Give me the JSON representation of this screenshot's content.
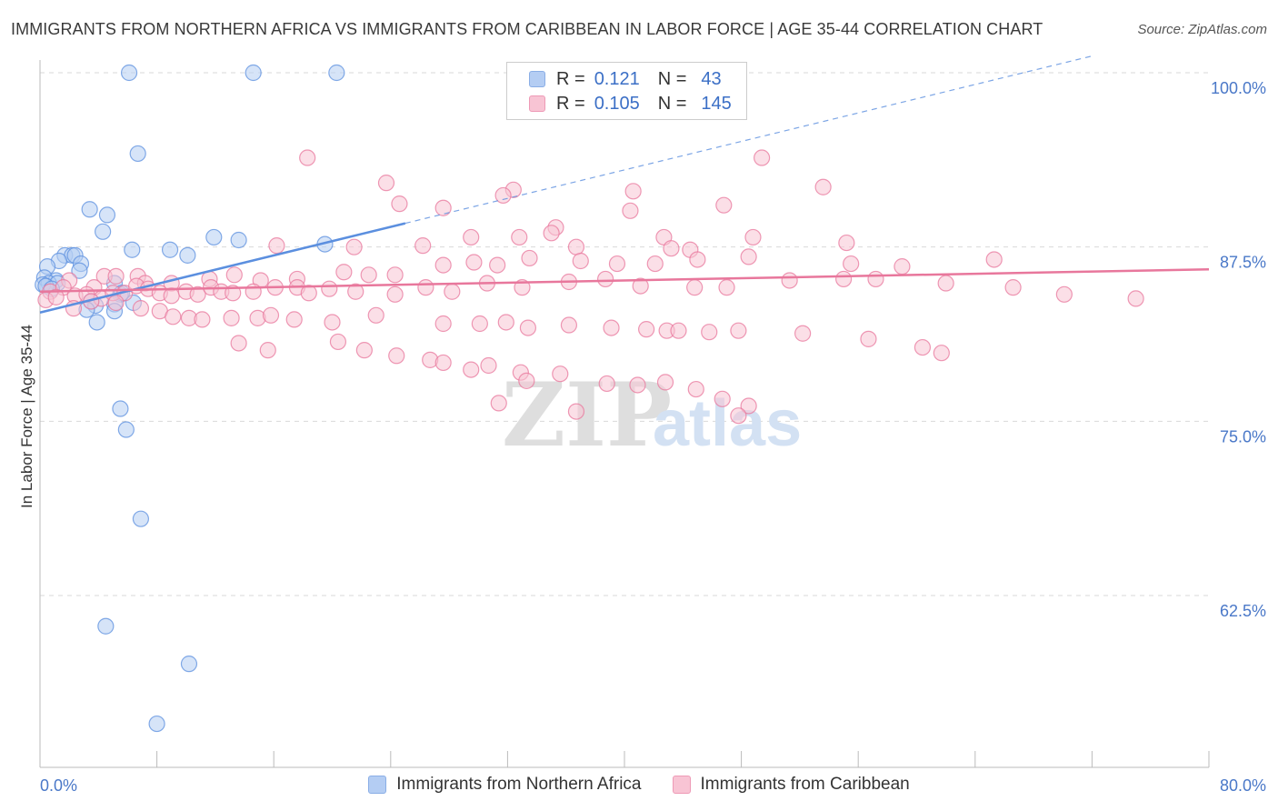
{
  "title": "IMMIGRANTS FROM NORTHERN AFRICA VS IMMIGRANTS FROM CARIBBEAN IN LABOR FORCE | AGE 35-44 CORRELATION CHART",
  "source": "Source: ZipAtlas.com",
  "watermark": {
    "zip": "ZIP",
    "atlas": "atlas"
  },
  "legend": {
    "r_label": "R =",
    "n_label": "N =",
    "rows": [
      {
        "r": "0.121",
        "n": "43",
        "swatch": "#b4cdf3",
        "border": "#8aaee6"
      },
      {
        "r": "0.105",
        "n": "145",
        "swatch": "#f8c4d4",
        "border": "#ee9ab6"
      }
    ]
  },
  "chart_data": {
    "type": "scatter",
    "title": "IMMIGRANTS FROM NORTHERN AFRICA VS IMMIGRANTS FROM CARIBBEAN IN LABOR FORCE | AGE 35-44 CORRELATION CHART",
    "xlabel": "",
    "ylabel": "In Labor Force | Age 35-44",
    "xlim": [
      0,
      80
    ],
    "ylim": [
      52,
      102
    ],
    "x_tick_labels": [
      {
        "value": 0,
        "label": "0.0%"
      },
      {
        "value": 80,
        "label": "80.0%"
      }
    ],
    "y_tick_labels": [
      {
        "value": 100,
        "label": "100.0%"
      },
      {
        "value": 87.5,
        "label": "87.5%"
      },
      {
        "value": 75,
        "label": "75.0%"
      },
      {
        "value": 62.5,
        "label": "62.5%"
      }
    ],
    "grid": "horizontal dashed",
    "legend_position": "top-center",
    "series": [
      {
        "name": "Immigrants from Northern Africa",
        "color": "#5b8fdf",
        "fill": "#b4cdf3",
        "r": 0.121,
        "n": 43,
        "trend": {
          "x0": 0,
          "y0": 82.8,
          "x1": 25,
          "y1": 89.2,
          "dashed_to_x": 72,
          "dashed_to_y": 101.2
        },
        "points": [
          [
            6.1,
            100
          ],
          [
            14.6,
            100
          ],
          [
            20.3,
            100
          ],
          [
            6.7,
            94.2
          ],
          [
            3.4,
            90.2
          ],
          [
            4.6,
            89.8
          ],
          [
            4.3,
            88.6
          ],
          [
            11.9,
            88.2
          ],
          [
            13.6,
            88
          ],
          [
            19.5,
            87.7
          ],
          [
            6.3,
            87.3
          ],
          [
            8.9,
            87.3
          ],
          [
            10.1,
            86.9
          ],
          [
            1.7,
            86.9
          ],
          [
            2.2,
            86.9
          ],
          [
            2.4,
            86.9
          ],
          [
            1.3,
            86.5
          ],
          [
            2.8,
            86.3
          ],
          [
            0.5,
            86.1
          ],
          [
            2.7,
            85.8
          ],
          [
            0.3,
            85.3
          ],
          [
            1.1,
            85.1
          ],
          [
            0.6,
            84.9
          ],
          [
            1.2,
            84.9
          ],
          [
            0.2,
            84.8
          ],
          [
            0.4,
            84.7
          ],
          [
            0.8,
            84.5
          ],
          [
            5.1,
            84.9
          ],
          [
            5.5,
            84.1
          ],
          [
            5.6,
            84.2
          ],
          [
            3.5,
            83.6
          ],
          [
            6.4,
            83.5
          ],
          [
            3.8,
            83.3
          ],
          [
            5.1,
            83.4
          ],
          [
            3.2,
            83
          ],
          [
            5.1,
            82.9
          ],
          [
            3.9,
            82.1
          ],
          [
            5.5,
            75.9
          ],
          [
            5.9,
            74.4
          ],
          [
            6.9,
            68
          ],
          [
            4.5,
            60.3
          ],
          [
            10.2,
            57.6
          ],
          [
            8.0,
            53.3
          ]
        ]
      },
      {
        "name": "Immigrants from Caribbean",
        "color": "#e8779c",
        "fill": "#f8c4d4",
        "r": 0.105,
        "n": 145,
        "trend": {
          "x0": 0,
          "y0": 84.3,
          "x1": 80,
          "y1": 85.9
        },
        "points": [
          [
            18.3,
            93.9
          ],
          [
            49.4,
            93.9
          ],
          [
            23.7,
            92.1
          ],
          [
            53.6,
            91.8
          ],
          [
            32.4,
            91.6
          ],
          [
            40.6,
            91.5
          ],
          [
            24.6,
            90.6
          ],
          [
            31.7,
            91.2
          ],
          [
            46.8,
            90.5
          ],
          [
            40.4,
            90.1
          ],
          [
            27.6,
            90.3
          ],
          [
            35.3,
            88.9
          ],
          [
            35.0,
            88.5
          ],
          [
            29.5,
            88.2
          ],
          [
            32.8,
            88.2
          ],
          [
            42.7,
            88.2
          ],
          [
            48.8,
            88.2
          ],
          [
            55.2,
            87.8
          ],
          [
            16.2,
            87.6
          ],
          [
            21.5,
            87.5
          ],
          [
            26.2,
            87.6
          ],
          [
            36.7,
            87.5
          ],
          [
            43.2,
            87.4
          ],
          [
            44.5,
            87.3
          ],
          [
            4.4,
            85.4
          ],
          [
            5.2,
            85.4
          ],
          [
            6.7,
            85.4
          ],
          [
            2.0,
            85.1
          ],
          [
            3.7,
            84.6
          ],
          [
            7.2,
            84.9
          ],
          [
            9.0,
            84.9
          ],
          [
            11.6,
            85.2
          ],
          [
            13.3,
            85.5
          ],
          [
            15.1,
            85.1
          ],
          [
            17.6,
            85.2
          ],
          [
            20.8,
            85.7
          ],
          [
            22.5,
            85.5
          ],
          [
            24.3,
            85.5
          ],
          [
            27.6,
            86.2
          ],
          [
            29.7,
            86.4
          ],
          [
            31.3,
            86.2
          ],
          [
            33.5,
            86.7
          ],
          [
            37.0,
            86.5
          ],
          [
            39.5,
            86.3
          ],
          [
            42.1,
            86.3
          ],
          [
            45.0,
            86.6
          ],
          [
            48.5,
            86.8
          ],
          [
            55.5,
            86.3
          ],
          [
            59.0,
            86.1
          ],
          [
            65.3,
            86.6
          ],
          [
            0.7,
            84.3
          ],
          [
            1.6,
            84.6
          ],
          [
            2.4,
            84.0
          ],
          [
            3.2,
            84.1
          ],
          [
            4.2,
            83.8
          ],
          [
            5.0,
            84.2
          ],
          [
            5.8,
            84.2
          ],
          [
            6.6,
            84.7
          ],
          [
            7.4,
            84.5
          ],
          [
            8.2,
            84.2
          ],
          [
            9.0,
            84.0
          ],
          [
            10.0,
            84.3
          ],
          [
            10.8,
            84.1
          ],
          [
            11.7,
            84.6
          ],
          [
            12.4,
            84.3
          ],
          [
            13.2,
            84.2
          ],
          [
            14.6,
            84.3
          ],
          [
            16.1,
            84.6
          ],
          [
            17.6,
            84.6
          ],
          [
            18.4,
            84.2
          ],
          [
            19.8,
            84.5
          ],
          [
            21.6,
            84.3
          ],
          [
            24.3,
            84.1
          ],
          [
            26.4,
            84.6
          ],
          [
            28.2,
            84.3
          ],
          [
            30.6,
            84.9
          ],
          [
            33.0,
            84.6
          ],
          [
            36.2,
            85.0
          ],
          [
            38.7,
            85.2
          ],
          [
            41.1,
            84.7
          ],
          [
            44.8,
            84.6
          ],
          [
            47.0,
            84.6
          ],
          [
            51.3,
            85.1
          ],
          [
            55.0,
            85.2
          ],
          [
            57.2,
            85.2
          ],
          [
            62.0,
            84.9
          ],
          [
            66.6,
            84.6
          ],
          [
            70.1,
            84.1
          ],
          [
            75.0,
            83.8
          ],
          [
            0.4,
            83.7
          ],
          [
            1.1,
            83.9
          ],
          [
            2.3,
            83.1
          ],
          [
            3.5,
            83.6
          ],
          [
            5.2,
            83.5
          ],
          [
            6.9,
            83.1
          ],
          [
            8.2,
            82.9
          ],
          [
            9.1,
            82.5
          ],
          [
            10.2,
            82.4
          ],
          [
            11.1,
            82.3
          ],
          [
            13.1,
            82.4
          ],
          [
            14.9,
            82.4
          ],
          [
            15.8,
            82.6
          ],
          [
            17.4,
            82.3
          ],
          [
            20.0,
            82.1
          ],
          [
            23.0,
            82.6
          ],
          [
            27.6,
            82.0
          ],
          [
            30.1,
            82.0
          ],
          [
            31.9,
            82.1
          ],
          [
            33.4,
            81.7
          ],
          [
            36.2,
            81.9
          ],
          [
            39.1,
            81.7
          ],
          [
            41.5,
            81.6
          ],
          [
            42.9,
            81.5
          ],
          [
            43.7,
            81.5
          ],
          [
            45.8,
            81.4
          ],
          [
            47.8,
            81.5
          ],
          [
            52.2,
            81.3
          ],
          [
            56.7,
            80.9
          ],
          [
            60.4,
            80.3
          ],
          [
            61.7,
            79.9
          ],
          [
            13.6,
            80.6
          ],
          [
            15.6,
            80.1
          ],
          [
            20.4,
            80.7
          ],
          [
            22.2,
            80.1
          ],
          [
            24.4,
            79.7
          ],
          [
            26.7,
            79.4
          ],
          [
            27.6,
            79.2
          ],
          [
            30.7,
            79.0
          ],
          [
            32.9,
            78.5
          ],
          [
            35.6,
            78.4
          ],
          [
            38.8,
            77.7
          ],
          [
            40.9,
            77.6
          ],
          [
            42.8,
            77.8
          ],
          [
            44.9,
            77.3
          ],
          [
            46.7,
            76.6
          ],
          [
            48.5,
            76.1
          ],
          [
            36.7,
            75.7
          ],
          [
            31.4,
            76.3
          ],
          [
            33.3,
            77.9
          ],
          [
            29.5,
            78.7
          ],
          [
            47.8,
            75.4
          ]
        ]
      }
    ]
  },
  "bottom_legend": [
    {
      "label": "Immigrants from Northern Africa",
      "swatch": "#b4cdf3",
      "border": "#8aaee6"
    },
    {
      "label": "Immigrants from Caribbean",
      "swatch": "#f8c4d4",
      "border": "#ee9ab6"
    }
  ]
}
